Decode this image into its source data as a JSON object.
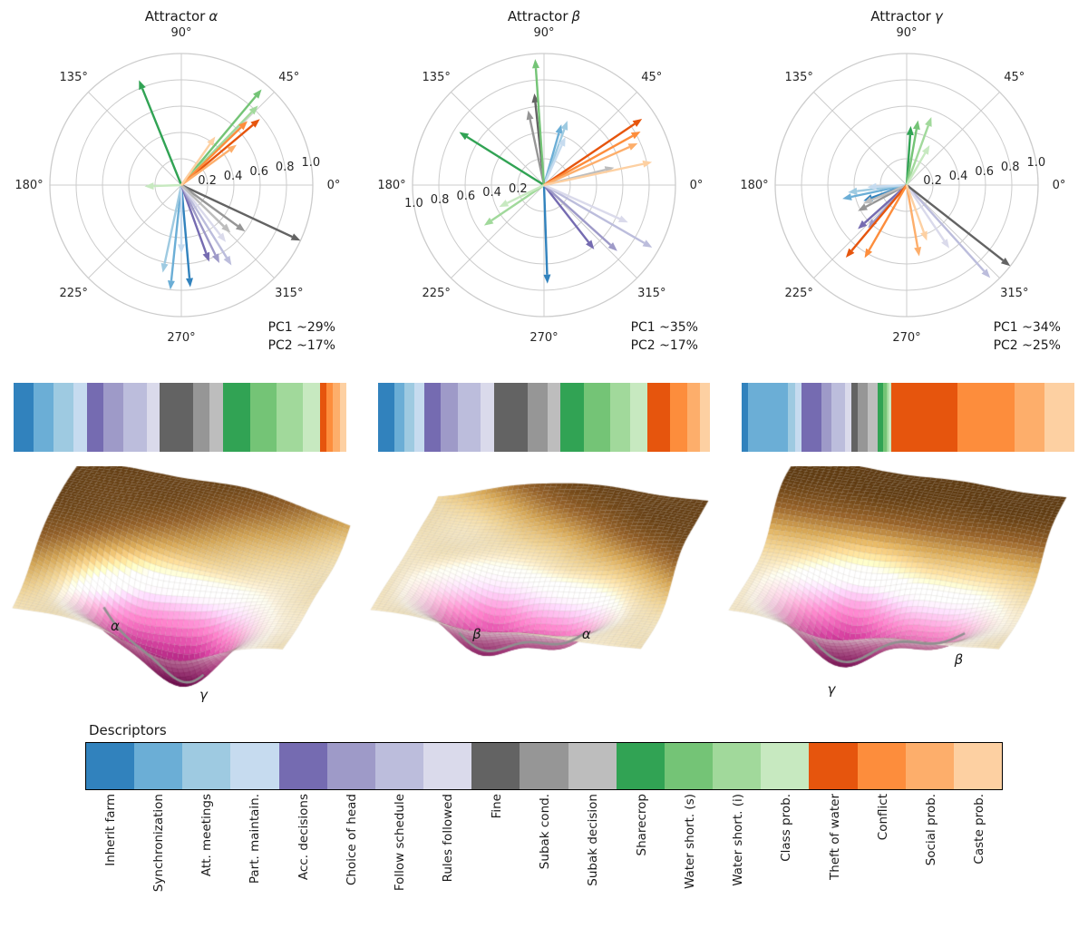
{
  "palette": [
    "#3182bd",
    "#6baed6",
    "#9ecae1",
    "#c6dbef",
    "#756bb1",
    "#9e9ac8",
    "#bcbddc",
    "#dadaeb",
    "#636363",
    "#969696",
    "#bdbdbd",
    "#31a354",
    "#74c476",
    "#a1d99b",
    "#c7e9c0",
    "#e6550d",
    "#fd8d3c",
    "#fdae6b",
    "#fdd0a2"
  ],
  "descriptors": [
    "Inherit farm",
    "Synchronization",
    "Att. meetings",
    "Part. maintain.",
    "Acc. decisions",
    "Choice of head",
    "Follow schedule",
    "Rules followed",
    "Fine",
    "Subak cond.",
    "Subak decision",
    "Sharecrop",
    "Water short. (s)",
    "Water short. (i)",
    "Class prob.",
    "Theft of water",
    "Conflict",
    "Social prob.",
    "Caste prob."
  ],
  "legend_title": "Descriptors",
  "chart_data": [
    {
      "type": "polar-quiver",
      "angle_labels": [
        "0°",
        "45°",
        "90°",
        "135°",
        "180°",
        "225°",
        "270°",
        "315°"
      ],
      "radial_ticks": [
        0.2,
        0.4,
        0.6,
        0.8,
        1.0
      ],
      "radial_tick_labels": [
        "0.2",
        "0.4",
        "0.6",
        "0.8",
        "1.0"
      ],
      "plots": [
        {
          "title": "Attractor",
          "symbol": "α",
          "pc1": "PC1 ~29%",
          "pc2": "PC2 ~17%",
          "tick_side": "right",
          "arrows": [
            {
              "c": 0,
              "a": -85,
              "r": 0.78
            },
            {
              "c": 1,
              "a": -96,
              "r": 0.8
            },
            {
              "c": 2,
              "a": -102,
              "r": 0.68
            },
            {
              "c": 3,
              "a": -90,
              "r": 0.52
            },
            {
              "c": 4,
              "a": -70,
              "r": 0.62
            },
            {
              "c": 5,
              "a": -64,
              "r": 0.66
            },
            {
              "c": 6,
              "a": -58,
              "r": 0.72
            },
            {
              "c": 7,
              "a": -52,
              "r": 0.55
            },
            {
              "c": 8,
              "a": -25,
              "r": 1.0
            },
            {
              "c": 9,
              "a": -36,
              "r": 0.6
            },
            {
              "c": 10,
              "a": -44,
              "r": 0.52
            },
            {
              "c": 11,
              "a": 112,
              "r": 0.86
            },
            {
              "c": 12,
              "a": 50,
              "r": 0.95
            },
            {
              "c": 13,
              "a": 46,
              "r": 0.84
            },
            {
              "c": 14,
              "a": 182,
              "r": 0.28
            },
            {
              "c": 15,
              "a": 40,
              "r": 0.78
            },
            {
              "c": 16,
              "a": 44,
              "r": 0.7
            },
            {
              "c": 17,
              "a": 36,
              "r": 0.52
            },
            {
              "c": 18,
              "a": 55,
              "r": 0.45
            }
          ]
        },
        {
          "title": "Attractor",
          "symbol": "β",
          "pc1": "PC1 ~35%",
          "pc2": "PC2 ~17%",
          "tick_side": "left",
          "arrows": [
            {
              "c": 0,
              "a": -88,
              "r": 0.75
            },
            {
              "c": 1,
              "a": 74,
              "r": 0.48
            },
            {
              "c": 2,
              "a": 70,
              "r": 0.52
            },
            {
              "c": 3,
              "a": 66,
              "r": 0.4
            },
            {
              "c": 4,
              "a": -52,
              "r": 0.62
            },
            {
              "c": 5,
              "a": -42,
              "r": 0.75
            },
            {
              "c": 6,
              "a": -30,
              "r": 0.95
            },
            {
              "c": 7,
              "a": -24,
              "r": 0.7
            },
            {
              "c": 8,
              "a": 96,
              "r": 0.7
            },
            {
              "c": 9,
              "a": 102,
              "r": 0.58
            },
            {
              "c": 10,
              "a": 14,
              "r": 0.55
            },
            {
              "c": 11,
              "a": 148,
              "r": 0.76
            },
            {
              "c": 12,
              "a": 94,
              "r": 0.96
            },
            {
              "c": 13,
              "a": 214,
              "r": 0.55
            },
            {
              "c": 14,
              "a": 206,
              "r": 0.38
            },
            {
              "c": 15,
              "a": 34,
              "r": 0.9
            },
            {
              "c": 16,
              "a": 29,
              "r": 0.84
            },
            {
              "c": 17,
              "a": 24,
              "r": 0.78
            },
            {
              "c": 18,
              "a": 12,
              "r": 0.84
            }
          ]
        },
        {
          "title": "Attractor",
          "symbol": "γ",
          "pc1": "PC1 ~34%",
          "pc2": "PC2 ~25%",
          "tick_side": "right",
          "arrows": [
            {
              "c": 0,
              "a": 200,
              "r": 0.35
            },
            {
              "c": 1,
              "a": 192,
              "r": 0.5
            },
            {
              "c": 2,
              "a": 187,
              "r": 0.45
            },
            {
              "c": 3,
              "a": 183,
              "r": 0.3
            },
            {
              "c": 4,
              "a": 222,
              "r": 0.5
            },
            {
              "c": 5,
              "a": 228,
              "r": 0.44
            },
            {
              "c": 6,
              "a": -48,
              "r": 0.95
            },
            {
              "c": 7,
              "a": -56,
              "r": 0.58
            },
            {
              "c": 8,
              "a": -38,
              "r": 1.0
            },
            {
              "c": 9,
              "a": 208,
              "r": 0.42
            },
            {
              "c": 10,
              "a": 203,
              "r": 0.36
            },
            {
              "c": 11,
              "a": 86,
              "r": 0.45
            },
            {
              "c": 12,
              "a": 80,
              "r": 0.5
            },
            {
              "c": 13,
              "a": 70,
              "r": 0.55
            },
            {
              "c": 14,
              "a": 60,
              "r": 0.35
            },
            {
              "c": 15,
              "a": 230,
              "r": 0.72
            },
            {
              "c": 16,
              "a": 240,
              "r": 0.64
            },
            {
              "c": 17,
              "a": -80,
              "r": 0.55
            },
            {
              "c": 18,
              "a": -70,
              "r": 0.45
            }
          ]
        }
      ]
    },
    {
      "type": "stacked-bar",
      "weights_order": "descriptors",
      "bars": [
        {
          "attractor": "α",
          "weights": [
            6,
            6,
            6,
            4,
            5,
            6,
            7,
            4,
            10,
            5,
            4,
            8,
            8,
            8,
            5,
            2,
            2,
            2,
            2
          ]
        },
        {
          "attractor": "β",
          "weights": [
            5,
            3,
            3,
            3,
            5,
            5,
            7,
            4,
            10,
            6,
            4,
            7,
            8,
            6,
            5,
            7,
            5,
            4,
            3
          ]
        },
        {
          "attractor": "γ",
          "weights": [
            2,
            12,
            2,
            2,
            6,
            3,
            4,
            2,
            2,
            3,
            3,
            1.5,
            1,
            0.8,
            0.7,
            20,
            17,
            9,
            9
          ]
        }
      ]
    },
    {
      "type": "surface",
      "surfaces": [
        {
          "name": "alpha-landscape",
          "wall": {
            "dx": -0.6,
            "dy": -0.8,
            "pos": 0.3,
            "k": 6,
            "h": 0.55
          },
          "wells": [
            {
              "x": -0.35,
              "y": 0.45,
              "d": 0.55,
              "s": 0.26,
              "label": "α"
            },
            {
              "x": 0.2,
              "y": 0.68,
              "d": 0.95,
              "s": 0.3,
              "label": "γ"
            }
          ],
          "labels": [
            {
              "t": "α",
              "x": 0.3,
              "y": 0.63
            },
            {
              "t": "γ",
              "x": 0.55,
              "y": 0.9
            }
          ]
        },
        {
          "name": "beta-landscape",
          "wall": {
            "dx": 0.55,
            "dy": -0.835,
            "pos": 0.55,
            "k": 8,
            "h": 0.55
          },
          "wells": [
            {
              "x": -0.32,
              "y": 0.5,
              "d": 0.82,
              "s": 0.27,
              "label": "β"
            },
            {
              "x": 0.3,
              "y": 0.5,
              "d": 0.5,
              "s": 0.24,
              "label": "α"
            }
          ],
          "labels": [
            {
              "t": "β",
              "x": 0.31,
              "y": 0.66
            },
            {
              "t": "α",
              "x": 0.62,
              "y": 0.66
            }
          ]
        },
        {
          "name": "gamma-landscape",
          "wall": {
            "dx": 0,
            "dy": -1,
            "pos": 0.3,
            "k": 7,
            "h": 0.6
          },
          "wells": [
            {
              "x": -0.3,
              "y": 0.55,
              "d": 0.95,
              "s": 0.3,
              "label": "γ"
            },
            {
              "x": 0.45,
              "y": 0.55,
              "d": 0.45,
              "s": 0.26,
              "label": "β"
            }
          ],
          "labels": [
            {
              "t": "γ",
              "x": 0.3,
              "y": 0.88
            },
            {
              "t": "β",
              "x": 0.66,
              "y": 0.76
            }
          ]
        }
      ]
    }
  ]
}
